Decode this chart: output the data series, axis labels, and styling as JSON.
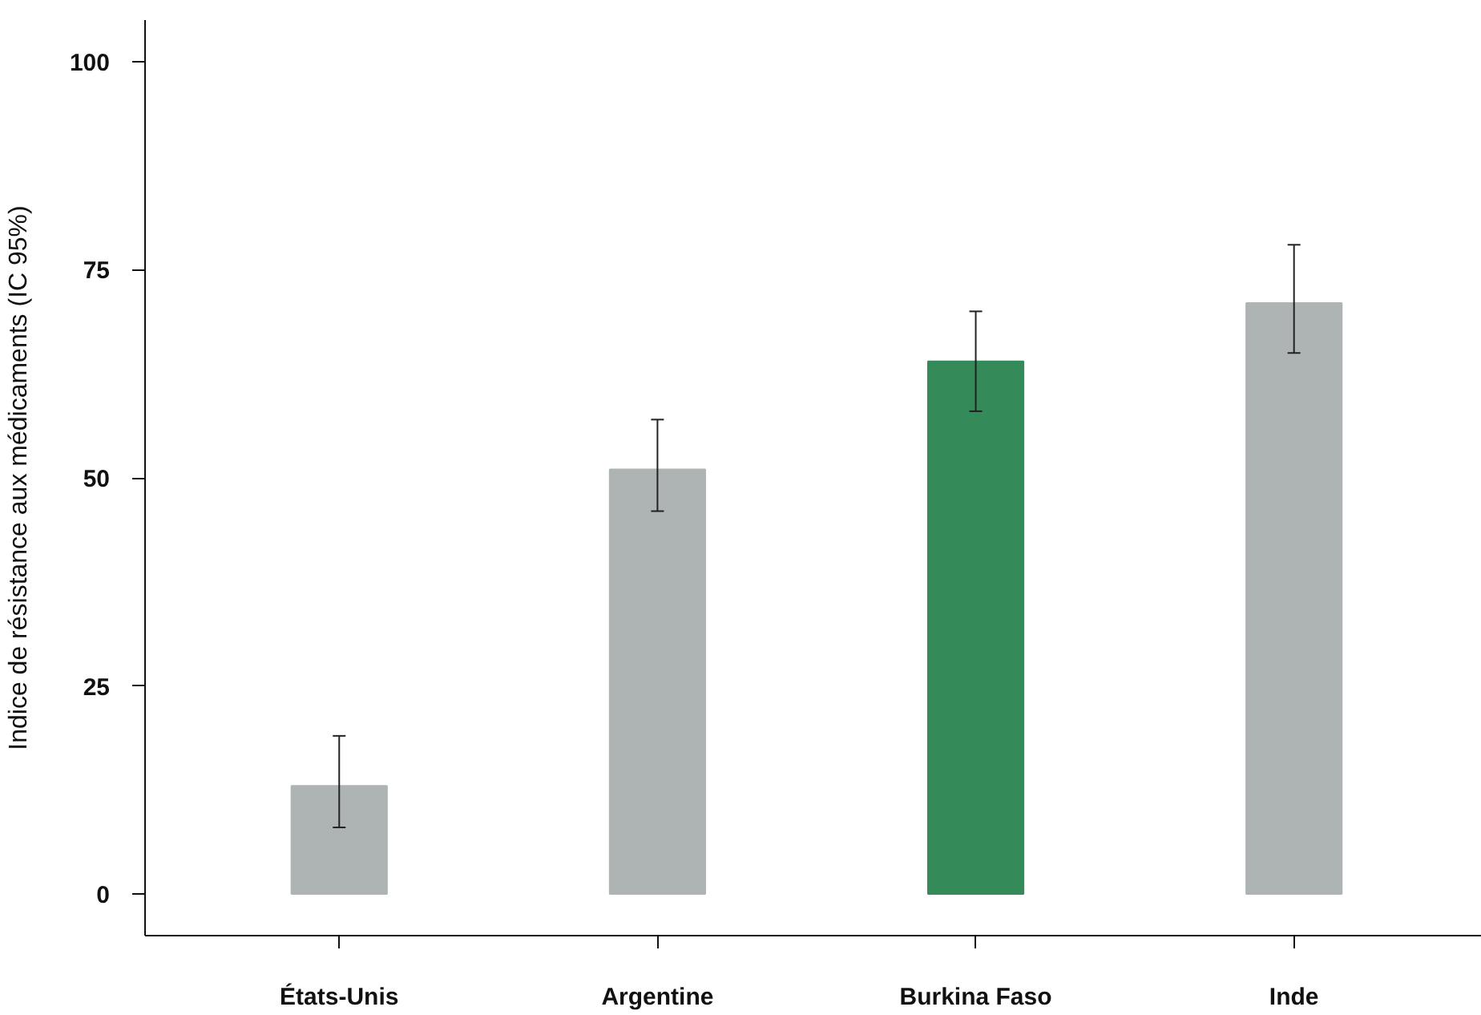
{
  "chart_data": {
    "type": "bar",
    "ylabel": "Indice de résistance aux médicaments (IC 95%)",
    "categories": [
      "États-Unis",
      "Argentine",
      "Burkina Faso",
      "Inde"
    ],
    "values": [
      13,
      51,
      64,
      71
    ],
    "colors": [
      "#aeb3b4",
      "#aeb3b4",
      "#348a58",
      "#aeb3b4"
    ],
    "errors": [
      [
        8,
        19
      ],
      [
        46,
        57
      ],
      [
        58,
        70
      ],
      [
        65,
        78
      ]
    ],
    "ylim": [
      -5,
      105
    ],
    "yticks": [
      0,
      25,
      50,
      75,
      100
    ],
    "grid": false
  }
}
